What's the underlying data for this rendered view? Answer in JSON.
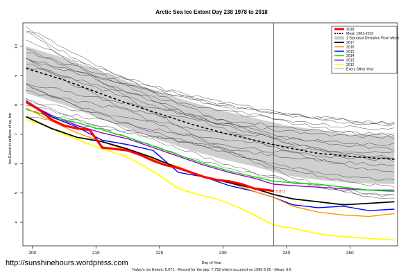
{
  "chart_data": {
    "type": "line",
    "title": "Arctic Sea Ice Extent Day 238 1978 to 2018",
    "xlabel": "Day of Year",
    "ylabel": "Ice Extent in millions of sq. km",
    "xlim": [
      198.5,
      257.5
    ],
    "ylim": [
      3.2,
      10.8
    ],
    "x_ticks": [
      200,
      210,
      220,
      230,
      240,
      250
    ],
    "y_ticks": [
      4,
      5,
      6,
      7,
      8,
      9,
      10
    ],
    "grid": false,
    "legend_position": "top-right",
    "current_day_marker": 238,
    "current_value_label": "5.071",
    "footer": "Today's Ice Extent: 5.071  - Record for the day: 7.752 which occurred on 1996 8 25   - Mean: 6.6",
    "watermark": "http://sunshinehours.wordpress.com",
    "legend": [
      {
        "label": "2018",
        "color": "#ff0000",
        "style": "thick"
      },
      {
        "label": "Mean 1981-2010",
        "color": "#000000",
        "style": "dashed"
      },
      {
        "label": "1 Standard Deviation From Mean",
        "color": "#c8c8c8",
        "style": "band"
      },
      {
        "label": "2017",
        "color": "#000000",
        "style": "solid"
      },
      {
        "label": "2016",
        "color": "#ff9900",
        "style": "solid"
      },
      {
        "label": "2015",
        "color": "#0000ff",
        "style": "solid"
      },
      {
        "label": "2014",
        "color": "#00dd00",
        "style": "solid"
      },
      {
        "label": "2013",
        "color": "#9900cc",
        "style": "solid"
      },
      {
        "label": "2012",
        "color": "#ffff00",
        "style": "solid"
      },
      {
        "label": "Every Other Year",
        "color": "#555555",
        "style": "thin"
      }
    ],
    "band": {
      "x": [
        199,
        205,
        210,
        215,
        220,
        225,
        230,
        235,
        240,
        245,
        250,
        257
      ],
      "upper": [
        10.0,
        9.6,
        9.2,
        8.8,
        8.45,
        8.1,
        7.8,
        7.55,
        7.3,
        7.15,
        7.0,
        6.95
      ],
      "lower": [
        8.4,
        8.0,
        7.6,
        7.2,
        6.8,
        6.45,
        6.15,
        5.9,
        5.6,
        5.45,
        5.35,
        5.3
      ]
    },
    "series": [
      {
        "name": "Mean 1981-2010",
        "color": "#000000",
        "width": 1.6,
        "dash": "4,3",
        "x": [
          199,
          205,
          210,
          215,
          220,
          225,
          230,
          235,
          240,
          245,
          250,
          257
        ],
        "values": [
          9.25,
          8.85,
          8.45,
          8.05,
          7.7,
          7.35,
          7.05,
          6.8,
          6.55,
          6.35,
          6.25,
          6.15
        ]
      },
      {
        "name": "2012",
        "color": "#ffff00",
        "width": 1.8,
        "x": [
          199,
          202,
          205,
          208,
          211,
          214,
          217,
          220,
          223,
          226,
          229,
          232,
          235,
          238,
          241,
          244,
          247,
          250,
          253,
          257
        ],
        "values": [
          7.5,
          7.3,
          7.0,
          6.75,
          6.5,
          6.3,
          6.0,
          5.6,
          5.15,
          4.95,
          4.8,
          4.55,
          4.25,
          3.9,
          3.8,
          3.65,
          3.55,
          3.5,
          3.45,
          3.4
        ]
      },
      {
        "name": "2013",
        "color": "#9900cc",
        "width": 1.4,
        "x": [
          199,
          203,
          207,
          211,
          215,
          219,
          223,
          227,
          231,
          235,
          238,
          241,
          245,
          249,
          253,
          257
        ],
        "values": [
          8.1,
          7.65,
          7.3,
          7.05,
          6.85,
          6.55,
          6.25,
          5.95,
          5.7,
          5.5,
          5.3,
          5.25,
          5.2,
          5.15,
          5.1,
          5.1
        ]
      },
      {
        "name": "2014",
        "color": "#00dd00",
        "width": 1.4,
        "x": [
          199,
          203,
          207,
          211,
          215,
          219,
          223,
          227,
          231,
          235,
          238,
          241,
          245,
          249,
          253,
          257
        ],
        "values": [
          7.85,
          7.6,
          7.4,
          7.15,
          6.9,
          6.6,
          6.3,
          6.0,
          5.75,
          5.55,
          5.4,
          5.35,
          5.3,
          5.2,
          5.1,
          5.05
        ]
      },
      {
        "name": "2015",
        "color": "#0000ff",
        "width": 1.4,
        "x": [
          199,
          203,
          207,
          211,
          215,
          219,
          223,
          227,
          231,
          235,
          238,
          241,
          245,
          249,
          253,
          257
        ],
        "values": [
          8.15,
          7.6,
          7.25,
          6.8,
          6.65,
          6.45,
          5.7,
          5.55,
          5.25,
          5.05,
          4.85,
          4.6,
          4.5,
          4.55,
          4.4,
          4.45
        ]
      },
      {
        "name": "2016",
        "color": "#ff9900",
        "width": 1.4,
        "x": [
          199,
          203,
          207,
          211,
          215,
          219,
          223,
          227,
          231,
          235,
          238,
          241,
          245,
          249,
          253,
          257
        ],
        "values": [
          7.9,
          7.45,
          7.05,
          6.75,
          6.45,
          6.15,
          5.9,
          5.55,
          5.35,
          5.05,
          4.85,
          4.55,
          4.35,
          4.25,
          4.2,
          4.3
        ]
      },
      {
        "name": "2017",
        "color": "#000000",
        "width": 1.8,
        "x": [
          199,
          203,
          207,
          211,
          215,
          219,
          223,
          227,
          231,
          235,
          238,
          241,
          245,
          249,
          253,
          257
        ],
        "values": [
          7.6,
          7.2,
          6.9,
          6.75,
          6.5,
          6.2,
          5.85,
          5.55,
          5.35,
          5.15,
          4.95,
          4.8,
          4.7,
          4.6,
          4.65,
          4.7
        ]
      },
      {
        "name": "2018",
        "color": "#ff0000",
        "width": 3.2,
        "x": [
          199,
          201,
          203,
          205,
          207,
          209,
          211,
          213,
          215,
          217,
          219,
          221,
          223,
          225,
          227,
          229,
          231,
          233,
          235,
          237,
          238
        ],
        "values": [
          8.1,
          7.85,
          7.5,
          7.3,
          7.2,
          7.15,
          6.55,
          6.5,
          6.45,
          6.3,
          6.1,
          5.95,
          5.85,
          5.7,
          5.55,
          5.45,
          5.4,
          5.3,
          5.15,
          5.1,
          5.07
        ]
      }
    ]
  }
}
